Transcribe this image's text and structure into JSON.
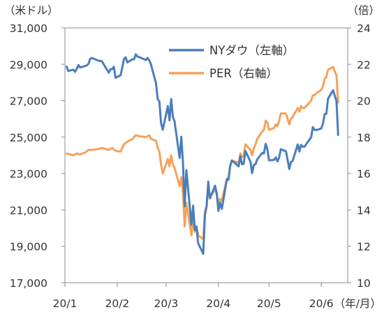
{
  "chart_data": {
    "type": "line",
    "title": "",
    "left_axis": {
      "unit_label": "（米ドル）",
      "ticks": [
        "31,000",
        "29,000",
        "27,000",
        "25,000",
        "23,000",
        "21,000",
        "19,000",
        "17,000"
      ],
      "range": [
        17000,
        31000
      ]
    },
    "right_axis": {
      "unit_label": "（倍）",
      "ticks": [
        "24",
        "22",
        "20",
        "18",
        "16",
        "14",
        "12",
        "10"
      ],
      "range": [
        10,
        24
      ]
    },
    "x_axis": {
      "unit_label": "（年/月）",
      "ticks": [
        "20/1",
        "20/2",
        "20/3",
        "20/4",
        "20/5",
        "20/6"
      ]
    },
    "legend_position": "top-right",
    "grid": false,
    "series": [
      {
        "name": "NYダウ（左軸）",
        "axis": "left",
        "color": "#4A7EBB",
        "points": [
          [
            "2020-01-02",
            28868
          ],
          [
            "2020-01-03",
            28634
          ],
          [
            "2020-01-06",
            28703
          ],
          [
            "2020-01-07",
            28583
          ],
          [
            "2020-01-08",
            28745
          ],
          [
            "2020-01-09",
            28956
          ],
          [
            "2020-01-10",
            28824
          ],
          [
            "2020-01-13",
            28907
          ],
          [
            "2020-01-14",
            28940
          ],
          [
            "2020-01-15",
            29030
          ],
          [
            "2020-01-16",
            29297
          ],
          [
            "2020-01-17",
            29348
          ],
          [
            "2020-01-21",
            29196
          ],
          [
            "2020-01-22",
            29186
          ],
          [
            "2020-01-23",
            29160
          ],
          [
            "2020-01-24",
            28990
          ],
          [
            "2020-01-27",
            28535
          ],
          [
            "2020-01-28",
            28723
          ],
          [
            "2020-01-29",
            28734
          ],
          [
            "2020-01-30",
            28860
          ],
          [
            "2020-01-31",
            28256
          ],
          [
            "2020-02-03",
            28400
          ],
          [
            "2020-02-04",
            28808
          ],
          [
            "2020-02-05",
            29291
          ],
          [
            "2020-02-06",
            29380
          ],
          [
            "2020-02-07",
            29103
          ],
          [
            "2020-02-10",
            29276
          ],
          [
            "2020-02-11",
            29276
          ],
          [
            "2020-02-12",
            29551
          ],
          [
            "2020-02-13",
            29423
          ],
          [
            "2020-02-14",
            29398
          ],
          [
            "2020-02-18",
            29232
          ],
          [
            "2020-02-19",
            29348
          ],
          [
            "2020-02-20",
            29219
          ],
          [
            "2020-02-21",
            28992
          ],
          [
            "2020-02-24",
            27961
          ],
          [
            "2020-02-25",
            27081
          ],
          [
            "2020-02-26",
            26957
          ],
          [
            "2020-02-27",
            25766
          ],
          [
            "2020-02-28",
            25409
          ],
          [
            "2020-03-02",
            26703
          ],
          [
            "2020-03-03",
            25917
          ],
          [
            "2020-03-04",
            27091
          ],
          [
            "2020-03-05",
            26121
          ],
          [
            "2020-03-06",
            25865
          ],
          [
            "2020-03-09",
            23851
          ],
          [
            "2020-03-10",
            25018
          ],
          [
            "2020-03-11",
            23553
          ],
          [
            "2020-03-12",
            21200
          ],
          [
            "2020-03-13",
            23185
          ],
          [
            "2020-03-16",
            20189
          ],
          [
            "2020-03-17",
            21237
          ],
          [
            "2020-03-18",
            19899
          ],
          [
            "2020-03-19",
            20087
          ],
          [
            "2020-03-20",
            19174
          ],
          [
            "2020-03-23",
            18592
          ],
          [
            "2020-03-24",
            20704
          ],
          [
            "2020-03-25",
            21201
          ],
          [
            "2020-03-26",
            22552
          ],
          [
            "2020-03-27",
            21637
          ],
          [
            "2020-03-30",
            22327
          ],
          [
            "2020-03-31",
            21917
          ],
          [
            "2020-04-01",
            20944
          ],
          [
            "2020-04-02",
            21413
          ],
          [
            "2020-04-03",
            21053
          ],
          [
            "2020-04-06",
            22680
          ],
          [
            "2020-04-07",
            22654
          ],
          [
            "2020-04-08",
            23434
          ],
          [
            "2020-04-09",
            23719
          ],
          [
            "2020-04-13",
            23390
          ],
          [
            "2020-04-14",
            23950
          ],
          [
            "2020-04-15",
            23505
          ],
          [
            "2020-04-16",
            23538
          ],
          [
            "2020-04-17",
            24242
          ],
          [
            "2020-04-20",
            23650
          ],
          [
            "2020-04-21",
            23019
          ],
          [
            "2020-04-22",
            23475
          ],
          [
            "2020-04-23",
            23515
          ],
          [
            "2020-04-24",
            23775
          ],
          [
            "2020-04-27",
            24134
          ],
          [
            "2020-04-28",
            24101
          ],
          [
            "2020-04-29",
            24633
          ],
          [
            "2020-04-30",
            24346
          ],
          [
            "2020-05-01",
            23724
          ],
          [
            "2020-05-04",
            23749
          ],
          [
            "2020-05-05",
            23883
          ],
          [
            "2020-05-06",
            23664
          ],
          [
            "2020-05-07",
            23875
          ],
          [
            "2020-05-08",
            24331
          ],
          [
            "2020-05-11",
            24221
          ],
          [
            "2020-05-12",
            23764
          ],
          [
            "2020-05-13",
            23248
          ],
          [
            "2020-05-14",
            23625
          ],
          [
            "2020-05-15",
            23685
          ],
          [
            "2020-05-18",
            24597
          ],
          [
            "2020-05-19",
            24207
          ],
          [
            "2020-05-20",
            24575
          ],
          [
            "2020-05-21",
            24474
          ],
          [
            "2020-05-22",
            24465
          ],
          [
            "2020-05-26",
            24995
          ],
          [
            "2020-05-27",
            25548
          ],
          [
            "2020-05-28",
            25400
          ],
          [
            "2020-05-29",
            25383
          ],
          [
            "2020-06-01",
            25475
          ],
          [
            "2020-06-02",
            25742
          ],
          [
            "2020-06-03",
            26269
          ],
          [
            "2020-06-04",
            26281
          ],
          [
            "2020-06-05",
            27111
          ],
          [
            "2020-06-08",
            27572
          ],
          [
            "2020-06-09",
            27272
          ],
          [
            "2020-06-10",
            26990
          ],
          [
            "2020-06-11",
            25128
          ]
        ]
      },
      {
        "name": "PER（右軸）",
        "axis": "right",
        "color": "#F5A15A",
        "points": [
          [
            "2020-01-02",
            17.1
          ],
          [
            "2020-01-06",
            17.0
          ],
          [
            "2020-01-08",
            17.1
          ],
          [
            "2020-01-10",
            17.05
          ],
          [
            "2020-01-13",
            17.15
          ],
          [
            "2020-01-15",
            17.3
          ],
          [
            "2020-01-17",
            17.3
          ],
          [
            "2020-01-21",
            17.35
          ],
          [
            "2020-01-23",
            17.4
          ],
          [
            "2020-01-27",
            17.3
          ],
          [
            "2020-01-29",
            17.4
          ],
          [
            "2020-01-31",
            17.25
          ],
          [
            "2020-02-03",
            17.2
          ],
          [
            "2020-02-05",
            17.6
          ],
          [
            "2020-02-07",
            17.75
          ],
          [
            "2020-02-10",
            17.9
          ],
          [
            "2020-02-12",
            18.1
          ],
          [
            "2020-02-14",
            18.05
          ],
          [
            "2020-02-18",
            18.0
          ],
          [
            "2020-02-20",
            18.1
          ],
          [
            "2020-02-21",
            17.9
          ],
          [
            "2020-02-24",
            17.8
          ],
          [
            "2020-02-25",
            17.4
          ],
          [
            "2020-02-26",
            17.2
          ],
          [
            "2020-02-27",
            16.5
          ],
          [
            "2020-02-28",
            16.0
          ],
          [
            "2020-03-02",
            16.8
          ],
          [
            "2020-03-03",
            16.4
          ],
          [
            "2020-03-04",
            17.0
          ],
          [
            "2020-03-05",
            16.5
          ],
          [
            "2020-03-06",
            16.3
          ],
          [
            "2020-03-09",
            15.3
          ],
          [
            "2020-03-10",
            15.8
          ],
          [
            "2020-03-11",
            14.9
          ],
          [
            "2020-03-12",
            13.1
          ],
          [
            "2020-03-13",
            14.4
          ],
          [
            "2020-03-16",
            12.6
          ],
          [
            "2020-03-17",
            13.5
          ],
          [
            "2020-03-18",
            12.8
          ],
          [
            "2020-03-19",
            13.1
          ],
          [
            "2020-03-20",
            12.6
          ],
          [
            "2020-03-23",
            12.4
          ],
          [
            "2020-03-24",
            13.9
          ],
          [
            "2020-03-25",
            14.2
          ],
          [
            "2020-03-26",
            15.2
          ],
          [
            "2020-03-27",
            14.7
          ],
          [
            "2020-03-30",
            15.1
          ],
          [
            "2020-03-31",
            14.9
          ],
          [
            "2020-04-01",
            14.4
          ],
          [
            "2020-04-02",
            14.6
          ],
          [
            "2020-04-03",
            14.5
          ],
          [
            "2020-04-06",
            15.7
          ],
          [
            "2020-04-07",
            15.8
          ],
          [
            "2020-04-08",
            16.4
          ],
          [
            "2020-04-09",
            16.7
          ],
          [
            "2020-04-13",
            16.6
          ],
          [
            "2020-04-14",
            17.1
          ],
          [
            "2020-04-15",
            16.9
          ],
          [
            "2020-04-16",
            17.0
          ],
          [
            "2020-04-17",
            17.6
          ],
          [
            "2020-04-20",
            17.3
          ],
          [
            "2020-04-21",
            17.0
          ],
          [
            "2020-04-22",
            17.4
          ],
          [
            "2020-04-23",
            17.6
          ],
          [
            "2020-04-24",
            17.9
          ],
          [
            "2020-04-27",
            18.3
          ],
          [
            "2020-04-28",
            18.4
          ],
          [
            "2020-04-29",
            18.9
          ],
          [
            "2020-04-30",
            18.8
          ],
          [
            "2020-05-01",
            18.4
          ],
          [
            "2020-05-04",
            18.5
          ],
          [
            "2020-05-05",
            18.7
          ],
          [
            "2020-05-06",
            18.6
          ],
          [
            "2020-05-07",
            18.9
          ],
          [
            "2020-05-08",
            19.3
          ],
          [
            "2020-05-11",
            19.3
          ],
          [
            "2020-05-12",
            19.0
          ],
          [
            "2020-05-13",
            18.7
          ],
          [
            "2020-05-14",
            19.0
          ],
          [
            "2020-05-15",
            19.1
          ],
          [
            "2020-05-18",
            19.6
          ],
          [
            "2020-05-19",
            19.4
          ],
          [
            "2020-05-20",
            19.7
          ],
          [
            "2020-05-21",
            19.6
          ],
          [
            "2020-05-22",
            19.6
          ],
          [
            "2020-05-26",
            20.0
          ],
          [
            "2020-05-27",
            20.3
          ],
          [
            "2020-05-28",
            20.3
          ],
          [
            "2020-05-29",
            20.4
          ],
          [
            "2020-06-01",
            20.6
          ],
          [
            "2020-06-02",
            20.8
          ],
          [
            "2020-06-03",
            21.2
          ],
          [
            "2020-06-04",
            21.3
          ],
          [
            "2020-06-05",
            21.7
          ],
          [
            "2020-06-08",
            21.85
          ],
          [
            "2020-06-09",
            21.6
          ],
          [
            "2020-06-10",
            21.4
          ],
          [
            "2020-06-11",
            19.9
          ]
        ]
      }
    ]
  }
}
